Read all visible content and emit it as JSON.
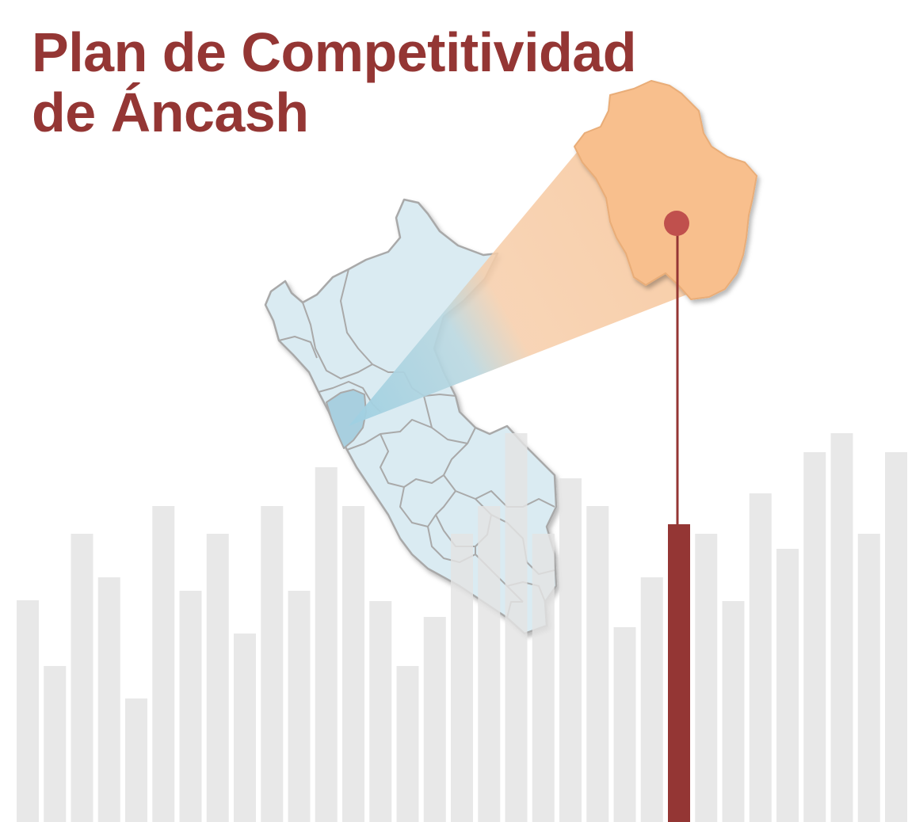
{
  "title": {
    "line1": "Plan de Competitividad",
    "line2": "de Áncash"
  },
  "colors": {
    "title": "#943634",
    "bar": "#e3e3e3",
    "highlight_bar": "#943634",
    "pin_head": "#c0504d",
    "peru_fill": "#daebf2",
    "peru_border": "#a9a9a9",
    "ancash_fill": "#a8cfdf",
    "zoom_region_fill": "#f8bf8d"
  },
  "chart_data": {
    "type": "bar",
    "values": [
      280,
      197,
      364,
      309,
      156,
      399,
      292,
      364,
      238,
      399,
      292,
      448,
      399,
      279,
      197,
      259,
      364,
      399,
      491,
      364,
      434,
      399,
      246,
      309,
      376,
      364,
      279,
      415,
      345,
      467,
      491,
      364,
      467
    ],
    "highlight_index": 24,
    "ylim": [
      0,
      500
    ]
  }
}
